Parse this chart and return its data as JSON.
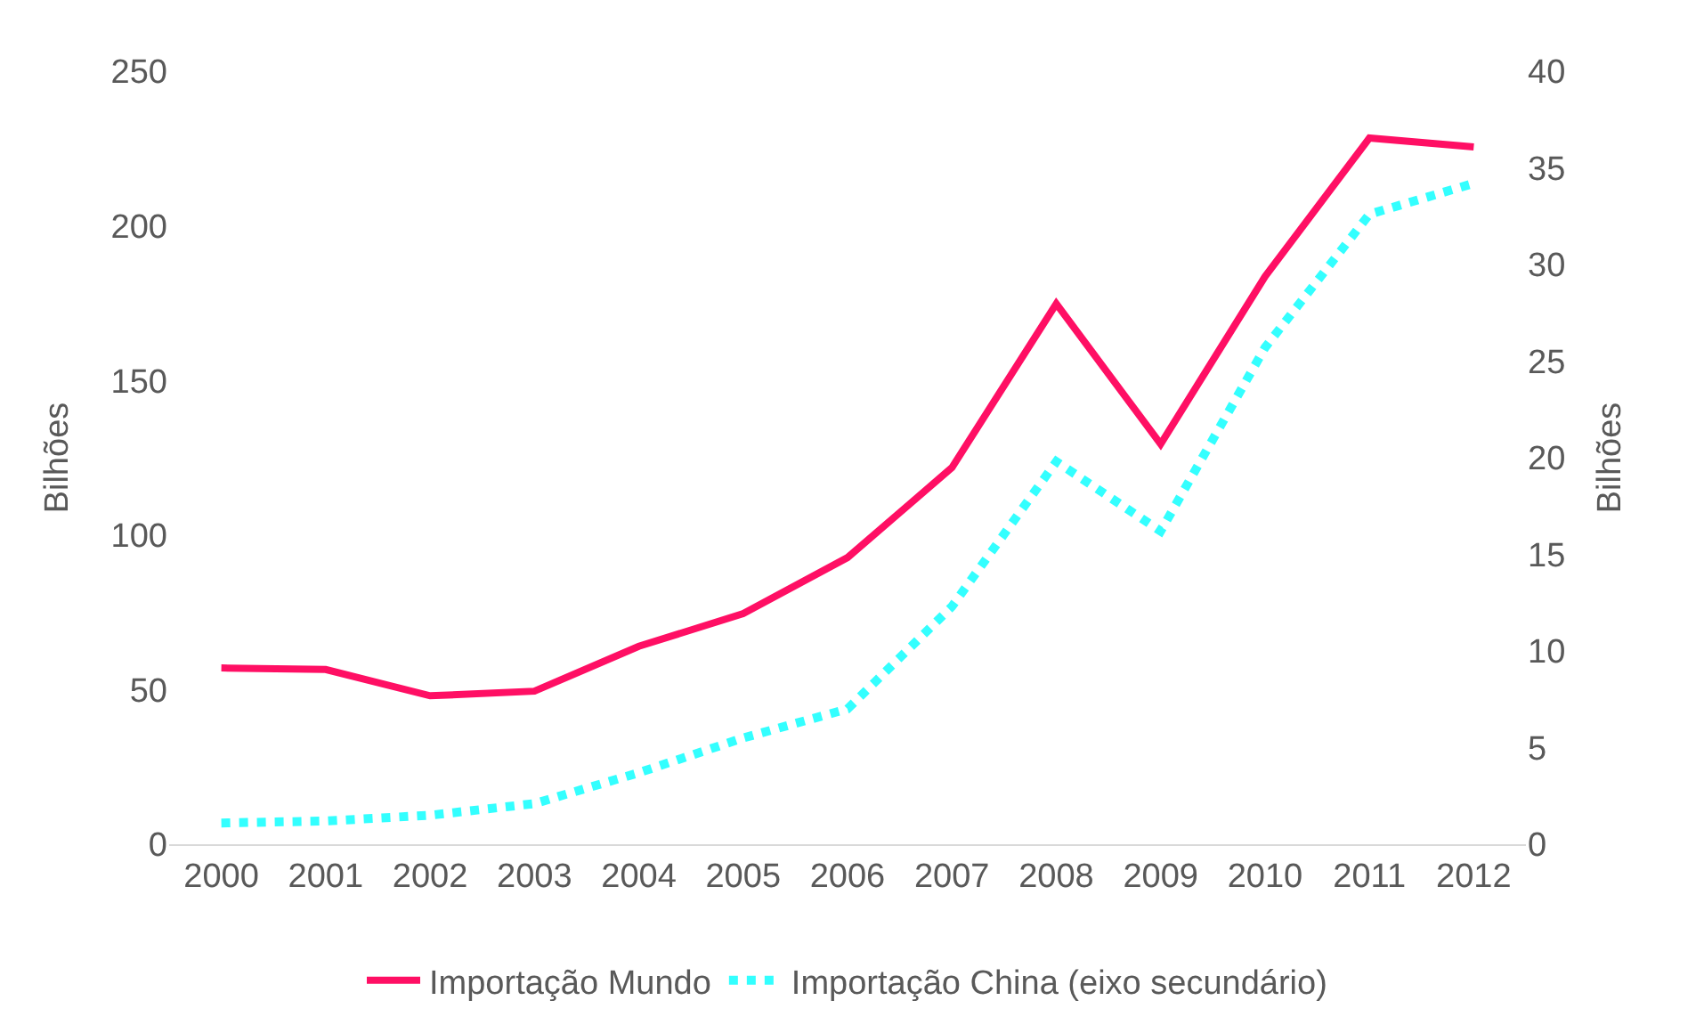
{
  "chart_data": {
    "type": "line",
    "categories": [
      "2000",
      "2001",
      "2002",
      "2003",
      "2004",
      "2005",
      "2006",
      "2007",
      "2008",
      "2009",
      "2010",
      "2011",
      "2012"
    ],
    "ylabel": "Bilhões",
    "y2label": "Bilhões",
    "series": [
      {
        "name": "Importação Mundo",
        "color": "#ff0f64",
        "line_style": "solid",
        "values": [
          57,
          56.5,
          48,
          49.5,
          64,
          74.6,
          92.7,
          121.8,
          174.8,
          129.4,
          183.6,
          228.4,
          225.5
        ]
      },
      {
        "name": "Importação China (eixo secundário)",
        "color": "#33ffff",
        "line_style": "dotted",
        "axis": "y2",
        "values": [
          1.1,
          1.2,
          1.5,
          2.1,
          3.7,
          5.5,
          7.0,
          12.3,
          19.8,
          16.2,
          25.7,
          32.6,
          34.2
        ]
      }
    ],
    "ylim": [
      0,
      250
    ],
    "yticks": [
      0,
      50,
      100,
      150,
      200,
      250
    ],
    "y2lim": [
      0,
      40
    ],
    "y2ticks": [
      0,
      5,
      10,
      15,
      20,
      25,
      30,
      35,
      40
    ],
    "grid": false,
    "legend": "bottom",
    "marker": "none"
  }
}
